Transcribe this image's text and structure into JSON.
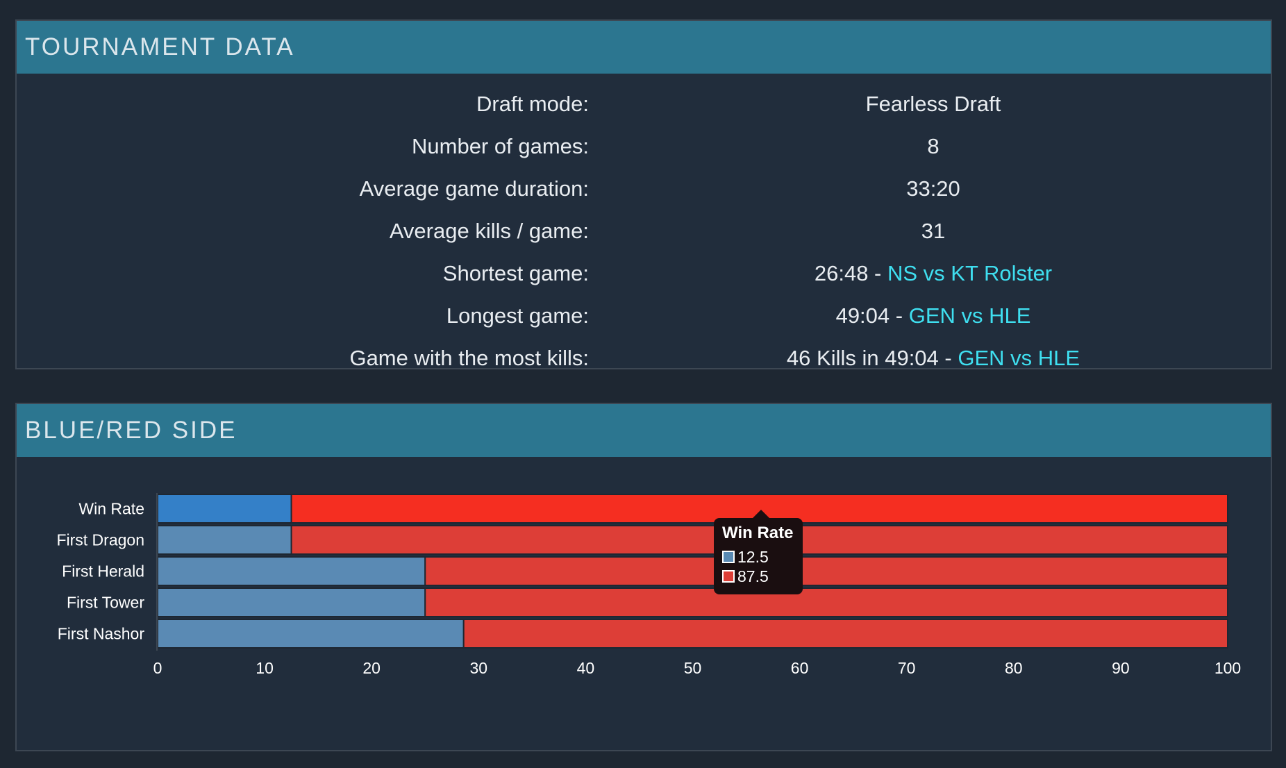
{
  "tournament": {
    "header": "TOURNAMENT DATA",
    "rows": [
      {
        "label": "Draft mode:",
        "value": "Fearless Draft",
        "link": ""
      },
      {
        "label": "Number of games:",
        "value": "8",
        "link": ""
      },
      {
        "label": "Average game duration:",
        "value": "33:20",
        "link": ""
      },
      {
        "label": "Average kills / game:",
        "value": "31",
        "link": ""
      },
      {
        "label": "Shortest game:",
        "value": "26:48 - ",
        "link": "NS vs KT Rolster"
      },
      {
        "label": "Longest game:",
        "value": "49:04 - ",
        "link": "GEN vs HLE"
      },
      {
        "label": "Game with the most kills:",
        "value": "46 Kills in 49:04 - ",
        "link": "GEN vs HLE"
      }
    ]
  },
  "side": {
    "header": "BLUE/RED SIDE"
  },
  "tooltip": {
    "title": "Win Rate",
    "blue_value": "12.5",
    "red_value": "87.5"
  },
  "chart_data": {
    "type": "bar",
    "orientation": "horizontal",
    "stacked": true,
    "categories": [
      "Win Rate",
      "First Dragon",
      "First Herald",
      "First Tower",
      "First Nashor"
    ],
    "series": [
      {
        "values": [
          12.5,
          12.5,
          25,
          25,
          28.6
        ],
        "color": "#5a8ab4"
      },
      {
        "values": [
          87.5,
          87.5,
          75,
          75,
          71.4
        ],
        "color": "#dd3e37"
      }
    ],
    "highlight": {
      "category": "Win Rate",
      "colors": [
        "#3480c8",
        "#f52e21"
      ]
    },
    "xlim": [
      0,
      100
    ],
    "xticks": [
      0,
      10,
      20,
      30,
      40,
      50,
      60,
      70,
      80,
      90,
      100
    ],
    "grid": false
  }
}
